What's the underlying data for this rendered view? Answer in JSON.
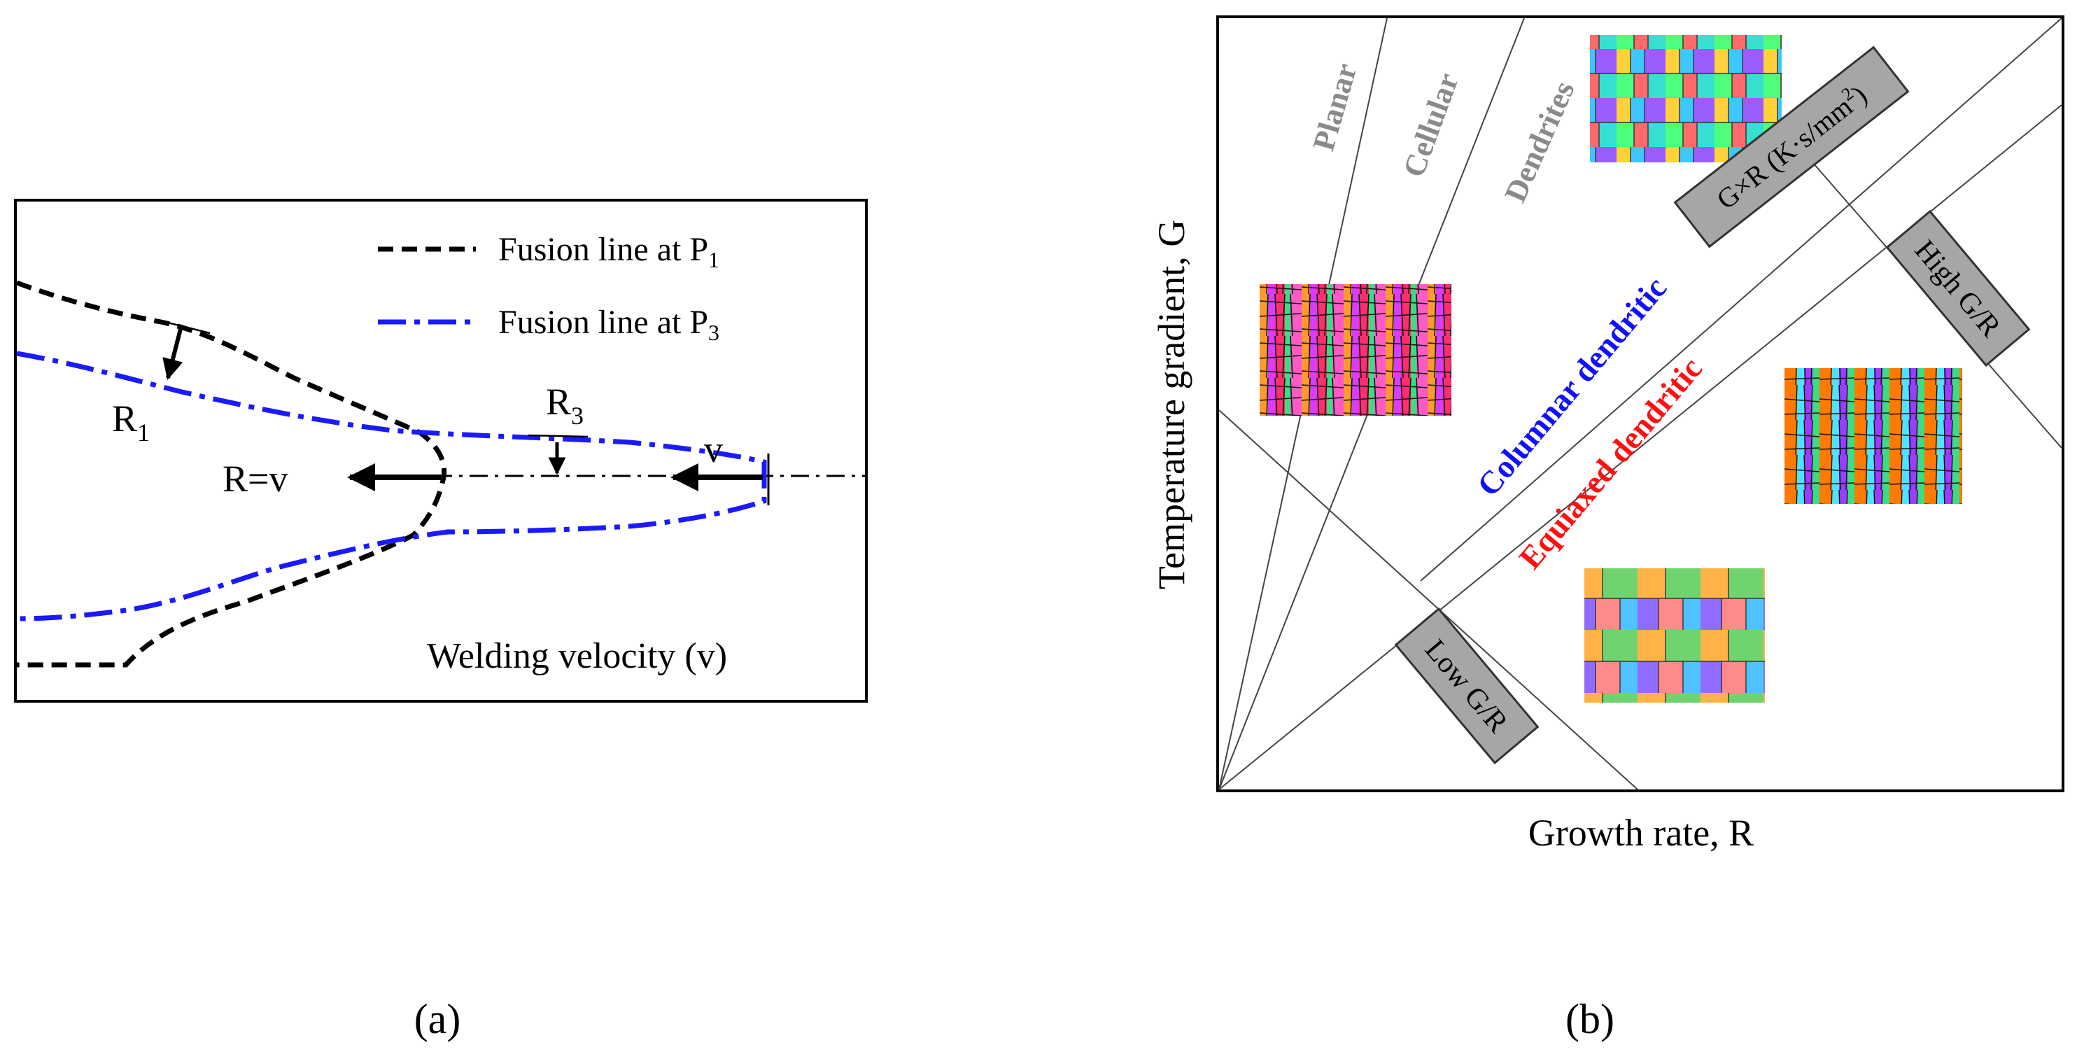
{
  "panel_a": {
    "legend": {
      "p1_prefix": "Fusion line at P",
      "p1_sub": "1",
      "p3_prefix": "Fusion line at P",
      "p3_sub": "3"
    },
    "label_r1_main": "R",
    "label_r1_sub": "1",
    "label_r3_main": "R",
    "label_r3_sub": "3",
    "label_r_eq_v": "R=v",
    "label_v": "v",
    "velocity_caption": "Welding velocity (v)",
    "caption": "(a)",
    "colors": {
      "p1_line": "#000000",
      "p3_line": "#1a1aff"
    }
  },
  "panel_b": {
    "ylabel": "Temperature gradient, G",
    "xlabel": "Growth rate, R",
    "region_planar": "Planar",
    "region_cellular": "Cellular",
    "region_dendrites": "Dendrites",
    "label_columnar": "Columnar dendritic",
    "label_equiaxed": "Equiaxed dendritic",
    "box_gxr_main": "G×R (K·s/mm",
    "box_gxr_sup": "2",
    "box_gxr_end": ")",
    "box_high": "High G/R",
    "box_low": "Low G/R",
    "caption": "(b)",
    "colors": {
      "columnar": "#1010ff",
      "equiaxed": "#ff1010",
      "gray_text": "#8a8a8a",
      "box_fill": "#a6a6a6"
    }
  }
}
